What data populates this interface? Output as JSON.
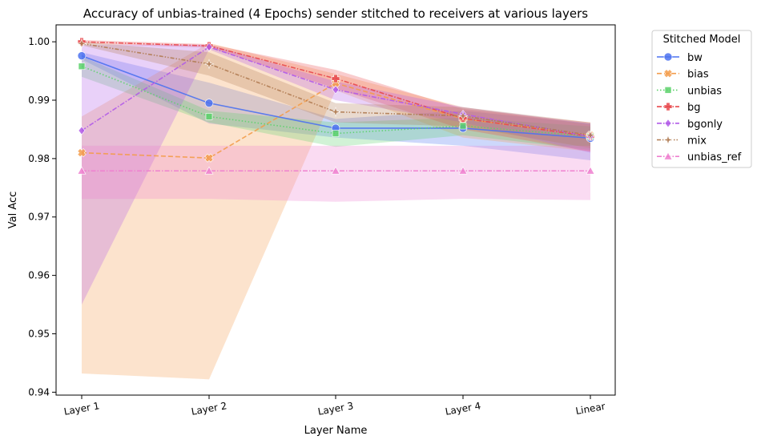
{
  "chart_data": {
    "type": "line",
    "title": "Accuracy of unbias-trained (4 Epochs) sender stitched to receivers at various layers",
    "xlabel": "Layer Name",
    "ylabel": "Val Acc",
    "categories": [
      "Layer 1",
      "Layer 2",
      "Layer 3",
      "Layer 4",
      "Linear"
    ],
    "ylim": [
      0.9395,
      1.0029
    ],
    "yticks": [
      0.94,
      0.95,
      0.96,
      0.97,
      0.98,
      0.99,
      1.0
    ],
    "ytick_labels": [
      "0.94",
      "0.95",
      "0.96",
      "0.97",
      "0.98",
      "0.99",
      "1.00"
    ],
    "grid": false,
    "legend": {
      "title": "Stitched Model",
      "placement": "outside-right"
    },
    "series": [
      {
        "name": "bw",
        "color": "#4c72f0",
        "dash": "",
        "marker": "circle",
        "values": [
          0.9976,
          0.9895,
          0.9852,
          0.9852,
          0.9835
        ],
        "ci_low": [
          0.997,
          0.986,
          0.9836,
          0.9822,
          0.9797
        ],
        "ci_high": [
          0.9982,
          0.993,
          0.9868,
          0.9882,
          0.986
        ]
      },
      {
        "name": "bias",
        "color": "#f39c4b",
        "dash": "6,3",
        "marker": "x",
        "values": [
          0.981,
          0.9801,
          0.9929,
          0.9868,
          0.984
        ],
        "ci_low": [
          0.9432,
          0.9422,
          0.9917,
          0.9836,
          0.9812
        ],
        "ci_high": [
          0.9872,
          0.9998,
          0.9945,
          0.9888,
          0.9858
        ]
      },
      {
        "name": "unbias",
        "color": "#5bd16a",
        "dash": "1.5,2.5",
        "marker": "square",
        "values": [
          0.9958,
          0.9872,
          0.9843,
          0.9856,
          0.9838
        ],
        "ci_low": [
          0.994,
          0.9862,
          0.982,
          0.984,
          0.9815
        ],
        "ci_high": [
          0.9975,
          0.9882,
          0.9862,
          0.987,
          0.9855
        ]
      },
      {
        "name": "bg",
        "color": "#e8474b",
        "dash": "6,2,1.5,2",
        "marker": "plus",
        "values": [
          1.0,
          0.9993,
          0.9937,
          0.9869,
          0.9838
        ],
        "ci_low": [
          0.9997,
          0.999,
          0.992,
          0.985,
          0.9812
        ],
        "ci_high": [
          1.0003,
          0.9996,
          0.9952,
          0.9885,
          0.9862
        ]
      },
      {
        "name": "bgonly",
        "color": "#b15be8",
        "dash": "6,2,1.5,2",
        "marker": "diamond",
        "values": [
          0.9848,
          0.9991,
          0.9918,
          0.9876,
          0.9838
        ],
        "ci_low": [
          0.955,
          0.9987,
          0.99,
          0.9862,
          0.981
        ],
        "ci_high": [
          0.9995,
          0.9995,
          0.9932,
          0.9888,
          0.986
        ]
      },
      {
        "name": "mix",
        "color": "#b07b52",
        "dash": "5,2,1.5,2,1.5,2",
        "marker": "star",
        "values": [
          0.9997,
          0.9962,
          0.988,
          0.9873,
          0.984
        ],
        "ci_low": [
          0.9994,
          0.9942,
          0.9862,
          0.9855,
          0.9818
        ],
        "ci_high": [
          1.0,
          0.9982,
          0.9895,
          0.9888,
          0.9862
        ]
      },
      {
        "name": "unbias_ref",
        "color": "#ee7fcf",
        "dash": "6,2,1.5,2",
        "marker": "triangle",
        "values": [
          0.9779,
          0.9779,
          0.9779,
          0.9779,
          0.9779
        ],
        "ci_low": [
          0.9731,
          0.9731,
          0.9726,
          0.9731,
          0.9729
        ],
        "ci_high": [
          0.9822,
          0.9822,
          0.9822,
          0.9822,
          0.9822
        ]
      }
    ]
  }
}
